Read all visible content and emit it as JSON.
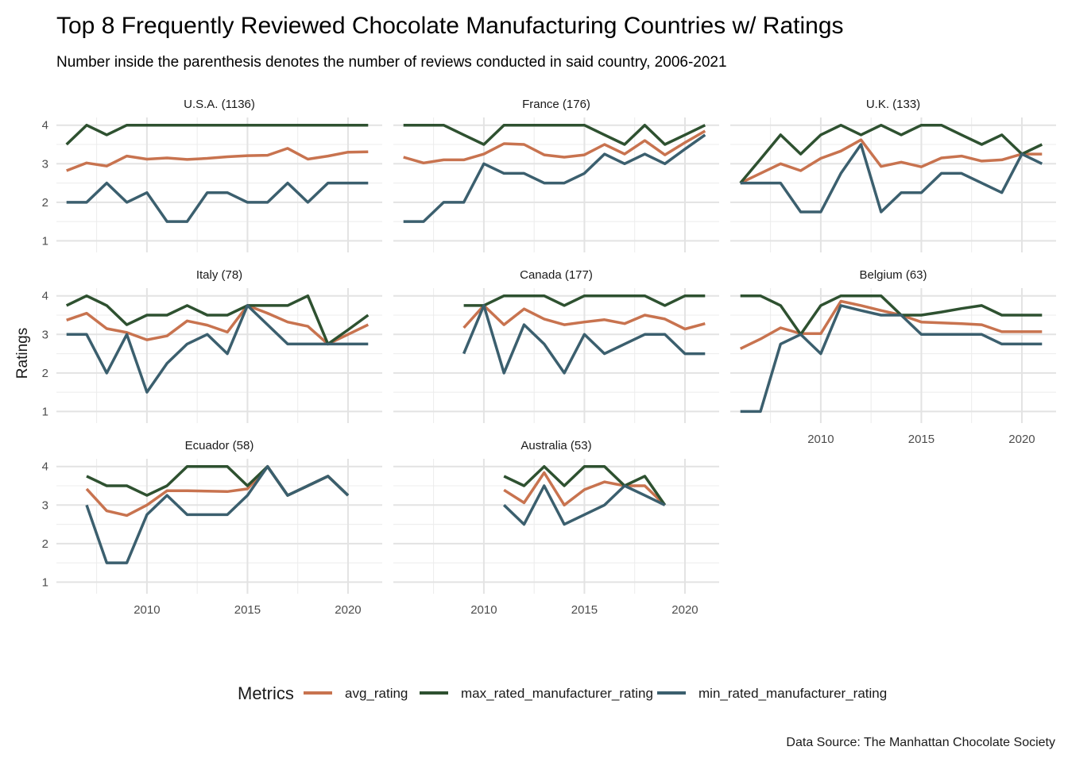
{
  "title": "Top 8 Frequently Reviewed Chocolate Manufacturing Countries w/ Ratings",
  "subtitle": "Number inside the parenthesis denotes the number of reviews conducted in said country, 2006-2021",
  "caption": "Data Source: The Manhattan Chocolate Society",
  "chart_data": {
    "type": "line",
    "facets": true,
    "xlabel": "",
    "ylabel": "Ratings",
    "xlim": [
      2005.5,
      2021.7
    ],
    "ylim": [
      0.7,
      4.2
    ],
    "x_ticks": [
      2010,
      2015,
      2020
    ],
    "y_ticks": [
      1,
      2,
      3,
      4
    ],
    "grid": true,
    "legend": {
      "title": "Metrics",
      "position": "bottom",
      "items": [
        {
          "name": "avg_rating",
          "color": "#C8734F"
        },
        {
          "name": "max_rated_manufacturer_rating",
          "color": "#2E5130"
        },
        {
          "name": "min_rated_manufacturer_rating",
          "color": "#3B5F6E"
        }
      ]
    },
    "panels": [
      {
        "label": "U.S.A. (1136)",
        "series": [
          {
            "name": "avg_rating",
            "x": [
              2006,
              2007,
              2008,
              2009,
              2010,
              2011,
              2012,
              2013,
              2014,
              2015,
              2016,
              2017,
              2018,
              2019,
              2020,
              2021
            ],
            "y": [
              2.82,
              3.02,
              2.94,
              3.2,
              3.12,
              3.15,
              3.11,
              3.14,
              3.18,
              3.21,
              3.22,
              3.4,
              3.12,
              3.2,
              3.3,
              3.31
            ]
          },
          {
            "name": "max_rated_manufacturer_rating",
            "x": [
              2006,
              2007,
              2008,
              2009,
              2010,
              2011,
              2012,
              2013,
              2014,
              2015,
              2016,
              2017,
              2018,
              2019,
              2020,
              2021
            ],
            "y": [
              3.5,
              4.0,
              3.75,
              4.0,
              4.0,
              4.0,
              4.0,
              4.0,
              4.0,
              4.0,
              4.0,
              4.0,
              4.0,
              4.0,
              4.0,
              4.0
            ]
          },
          {
            "name": "min_rated_manufacturer_rating",
            "x": [
              2006,
              2007,
              2008,
              2009,
              2010,
              2011,
              2012,
              2013,
              2014,
              2015,
              2016,
              2017,
              2018,
              2019,
              2020,
              2021
            ],
            "y": [
              2.0,
              2.0,
              2.5,
              2.0,
              2.25,
              1.5,
              1.5,
              2.25,
              2.25,
              2.0,
              2.0,
              2.5,
              2.0,
              2.5,
              2.5,
              2.5
            ]
          }
        ]
      },
      {
        "label": "France (176)",
        "series": [
          {
            "name": "avg_rating",
            "x": [
              2006,
              2007,
              2008,
              2009,
              2010,
              2011,
              2012,
              2013,
              2014,
              2015,
              2016,
              2017,
              2018,
              2019,
              2020,
              2021
            ],
            "y": [
              3.17,
              3.02,
              3.1,
              3.1,
              3.25,
              3.52,
              3.5,
              3.23,
              3.17,
              3.23,
              3.5,
              3.25,
              3.6,
              3.23,
              3.55,
              3.85
            ]
          },
          {
            "name": "max_rated_manufacturer_rating",
            "x": [
              2006,
              2007,
              2008,
              2009,
              2010,
              2011,
              2012,
              2013,
              2014,
              2015,
              2016,
              2017,
              2018,
              2019,
              2020,
              2021
            ],
            "y": [
              4.0,
              4.0,
              4.0,
              3.75,
              3.5,
              4.0,
              4.0,
              4.0,
              4.0,
              4.0,
              3.75,
              3.5,
              4.0,
              3.5,
              3.75,
              4.0
            ]
          },
          {
            "name": "min_rated_manufacturer_rating",
            "x": [
              2006,
              2007,
              2008,
              2009,
              2010,
              2011,
              2012,
              2013,
              2014,
              2015,
              2016,
              2017,
              2018,
              2019,
              2020,
              2021
            ],
            "y": [
              1.5,
              1.5,
              2.0,
              2.0,
              3.0,
              2.75,
              2.75,
              2.5,
              2.5,
              2.75,
              3.25,
              3.0,
              3.25,
              3.0,
              3.38,
              3.75
            ]
          }
        ]
      },
      {
        "label": "U.K. (133)",
        "series": [
          {
            "name": "avg_rating",
            "x": [
              2006,
              2007,
              2008,
              2009,
              2010,
              2011,
              2012,
              2013,
              2014,
              2015,
              2016,
              2017,
              2018,
              2019,
              2020,
              2021
            ],
            "y": [
              2.5,
              2.75,
              3.0,
              2.82,
              3.14,
              3.33,
              3.62,
              2.93,
              3.04,
              2.92,
              3.15,
              3.2,
              3.07,
              3.1,
              3.25,
              3.25
            ]
          },
          {
            "name": "max_rated_manufacturer_rating",
            "x": [
              2006,
              2007,
              2008,
              2009,
              2010,
              2011,
              2012,
              2013,
              2014,
              2015,
              2016,
              2017,
              2018,
              2019,
              2020,
              2021
            ],
            "y": [
              2.5,
              3.12,
              3.75,
              3.25,
              3.75,
              4.0,
              3.75,
              4.0,
              3.75,
              4.0,
              4.0,
              3.75,
              3.5,
              3.75,
              3.25,
              3.5
            ]
          },
          {
            "name": "min_rated_manufacturer_rating",
            "x": [
              2006,
              2007,
              2008,
              2009,
              2010,
              2011,
              2012,
              2013,
              2014,
              2015,
              2016,
              2017,
              2018,
              2019,
              2020,
              2021
            ],
            "y": [
              2.5,
              2.5,
              2.5,
              1.75,
              1.75,
              2.75,
              3.5,
              1.75,
              2.25,
              2.25,
              2.75,
              2.75,
              2.5,
              2.25,
              3.25,
              3.0
            ]
          }
        ]
      },
      {
        "label": "Italy (78)",
        "series": [
          {
            "name": "avg_rating",
            "x": [
              2006,
              2007,
              2008,
              2009,
              2010,
              2011,
              2012,
              2013,
              2014,
              2015,
              2016,
              2017,
              2018,
              2019,
              2020,
              2021
            ],
            "y": [
              3.37,
              3.55,
              3.15,
              3.05,
              2.86,
              2.96,
              3.35,
              3.24,
              3.06,
              3.75,
              3.55,
              3.32,
              3.21,
              2.75,
              3.0,
              3.25
            ]
          },
          {
            "name": "max_rated_manufacturer_rating",
            "x": [
              2006,
              2007,
              2008,
              2009,
              2010,
              2011,
              2012,
              2013,
              2014,
              2015,
              2016,
              2017,
              2018,
              2019,
              2020,
              2021
            ],
            "y": [
              3.75,
              4.0,
              3.75,
              3.25,
              3.5,
              3.5,
              3.75,
              3.5,
              3.5,
              3.75,
              3.75,
              3.75,
              4.0,
              2.75,
              3.12,
              3.5
            ]
          },
          {
            "name": "min_rated_manufacturer_rating",
            "x": [
              2006,
              2007,
              2008,
              2009,
              2010,
              2011,
              2012,
              2013,
              2014,
              2015,
              2016,
              2017,
              2018,
              2019,
              2020,
              2021
            ],
            "y": [
              3.0,
              3.0,
              2.0,
              3.0,
              1.5,
              2.25,
              2.75,
              3.0,
              2.5,
              3.75,
              3.25,
              2.75,
              2.75,
              2.75,
              2.75,
              2.75
            ]
          }
        ]
      },
      {
        "label": "Canada (177)",
        "series": [
          {
            "name": "avg_rating",
            "x": [
              2009,
              2010,
              2011,
              2012,
              2013,
              2014,
              2015,
              2016,
              2017,
              2018,
              2019,
              2020,
              2021
            ],
            "y": [
              3.17,
              3.75,
              3.25,
              3.66,
              3.4,
              3.25,
              3.32,
              3.38,
              3.28,
              3.5,
              3.4,
              3.14,
              3.28
            ]
          },
          {
            "name": "max_rated_manufacturer_rating",
            "x": [
              2009,
              2010,
              2011,
              2012,
              2013,
              2014,
              2015,
              2016,
              2017,
              2018,
              2019,
              2020,
              2021
            ],
            "y": [
              3.75,
              3.75,
              4.0,
              4.0,
              4.0,
              3.75,
              4.0,
              4.0,
              4.0,
              4.0,
              3.75,
              4.0,
              4.0
            ]
          },
          {
            "name": "min_rated_manufacturer_rating",
            "x": [
              2009,
              2010,
              2011,
              2012,
              2013,
              2014,
              2015,
              2016,
              2017,
              2018,
              2019,
              2020,
              2021
            ],
            "y": [
              2.5,
              3.75,
              2.0,
              3.25,
              2.75,
              2.0,
              3.0,
              2.5,
              2.75,
              3.0,
              3.0,
              2.5,
              2.5
            ]
          }
        ]
      },
      {
        "label": "Belgium (63)",
        "series": [
          {
            "name": "avg_rating",
            "x": [
              2006,
              2007,
              2008,
              2009,
              2010,
              2011,
              2012,
              2013,
              2014,
              2015,
              2016,
              2017,
              2018,
              2019,
              2020,
              2021
            ],
            "y": [
              2.63,
              2.88,
              3.17,
              3.02,
              3.02,
              3.86,
              3.75,
              3.62,
              3.5,
              3.32,
              3.3,
              3.28,
              3.25,
              3.07,
              3.07,
              3.07
            ]
          },
          {
            "name": "max_rated_manufacturer_rating",
            "x": [
              2006,
              2007,
              2008,
              2009,
              2010,
              2011,
              2012,
              2013,
              2014,
              2015,
              2016,
              2017,
              2018,
              2019,
              2020,
              2021
            ],
            "y": [
              4.0,
              4.0,
              3.75,
              3.0,
              3.75,
              4.0,
              4.0,
              4.0,
              3.5,
              3.5,
              3.58,
              3.67,
              3.75,
              3.5,
              3.5,
              3.5
            ]
          },
          {
            "name": "min_rated_manufacturer_rating",
            "x": [
              2006,
              2007,
              2008,
              2009,
              2010,
              2011,
              2012,
              2013,
              2014,
              2015,
              2016,
              2017,
              2018,
              2019,
              2020,
              2021
            ],
            "y": [
              1.0,
              1.0,
              2.75,
              3.0,
              2.5,
              3.75,
              3.62,
              3.5,
              3.5,
              3.0,
              3.0,
              3.0,
              3.0,
              2.75,
              2.75,
              2.75
            ]
          }
        ]
      },
      {
        "label": "Ecuador (58)",
        "series": [
          {
            "name": "avg_rating",
            "x": [
              2007,
              2008,
              2009,
              2010,
              2011,
              2012,
              2013,
              2014,
              2015,
              2016,
              2017,
              2018,
              2019,
              2020
            ],
            "y": [
              3.42,
              2.85,
              2.73,
              3.0,
              3.37,
              3.37,
              3.36,
              3.35,
              3.42,
              4.0,
              3.25,
              3.5,
              3.75,
              3.25
            ]
          },
          {
            "name": "max_rated_manufacturer_rating",
            "x": [
              2007,
              2008,
              2009,
              2010,
              2011,
              2012,
              2013,
              2014,
              2015,
              2016,
              2017,
              2018,
              2019,
              2020
            ],
            "y": [
              3.75,
              3.5,
              3.5,
              3.25,
              3.5,
              4.0,
              4.0,
              4.0,
              3.5,
              4.0,
              3.25,
              3.5,
              3.75,
              3.25
            ]
          },
          {
            "name": "min_rated_manufacturer_rating",
            "x": [
              2007,
              2008,
              2009,
              2010,
              2011,
              2012,
              2013,
              2014,
              2015,
              2016,
              2017,
              2018,
              2019,
              2020
            ],
            "y": [
              3.0,
              1.5,
              1.5,
              2.75,
              3.25,
              2.75,
              2.75,
              2.75,
              3.25,
              4.0,
              3.25,
              3.5,
              3.75,
              3.25
            ]
          }
        ]
      },
      {
        "label": "Australia (53)",
        "series": [
          {
            "name": "avg_rating",
            "x": [
              2011,
              2012,
              2013,
              2014,
              2015,
              2016,
              2017,
              2018,
              2019
            ],
            "y": [
              3.39,
              3.06,
              3.84,
              3.0,
              3.4,
              3.6,
              3.5,
              3.5,
              3.0
            ]
          },
          {
            "name": "max_rated_manufacturer_rating",
            "x": [
              2011,
              2012,
              2013,
              2014,
              2015,
              2016,
              2017,
              2018,
              2019
            ],
            "y": [
              3.75,
              3.5,
              4.0,
              3.5,
              4.0,
              4.0,
              3.5,
              3.75,
              3.0
            ]
          },
          {
            "name": "min_rated_manufacturer_rating",
            "x": [
              2011,
              2012,
              2013,
              2014,
              2015,
              2016,
              2017,
              2018,
              2019
            ],
            "y": [
              3.0,
              2.5,
              3.5,
              2.5,
              2.75,
              3.0,
              3.5,
              3.25,
              3.0
            ]
          }
        ]
      }
    ]
  }
}
